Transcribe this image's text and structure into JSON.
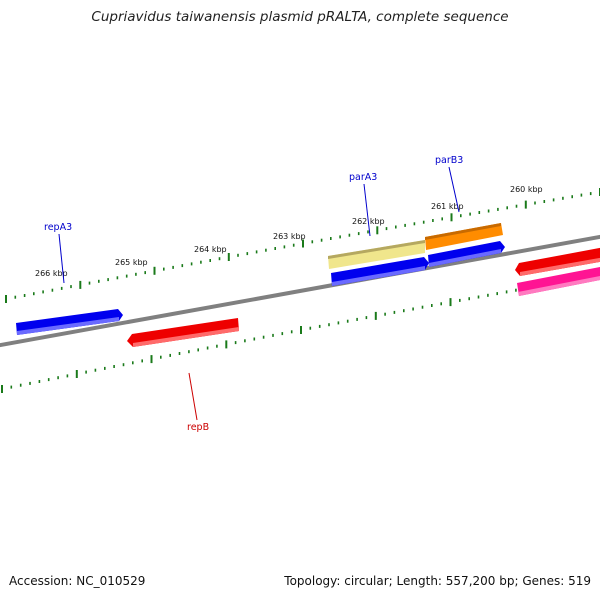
{
  "title": "Cupriavidus taiwanensis plasmid pRALTA, complete sequence",
  "footer": {
    "accession": "Accession: NC_010529",
    "info": "Topology: circular; Length: 557,200 bp; Genes: 519"
  },
  "colors": {
    "backbone": "#808080",
    "scale_ticks": "#1a7a1a",
    "blue_gene": "#0000ee",
    "red_gene": "#ee0000",
    "orange_gene": "#ff8c00",
    "khaki_gene": "#f0e68c",
    "pink_gene": "#ff1493",
    "label_blue": "#0000cc",
    "label_red": "#cc0000"
  },
  "scale_labels": [
    "266 kbp",
    "265 kbp",
    "264 kbp",
    "263 kbp",
    "262 kbp",
    "261 kbp",
    "260 kbp"
  ],
  "gene_labels": [
    {
      "text": "repA3",
      "color": "#0000cc"
    },
    {
      "text": "parA3",
      "color": "#0000cc"
    },
    {
      "text": "parB3",
      "color": "#0000cc"
    },
    {
      "text": "repB",
      "color": "#cc0000"
    }
  ]
}
